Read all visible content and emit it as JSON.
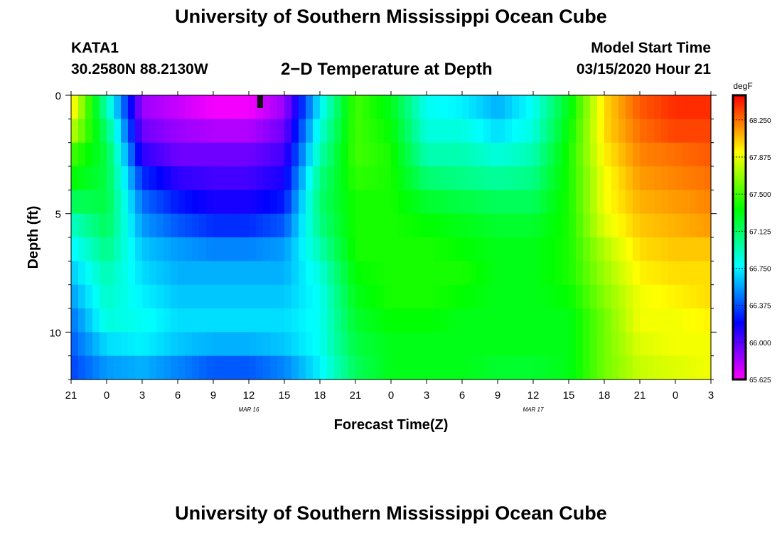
{
  "header": {
    "title": "University of Southern Mississippi Ocean Cube",
    "station_id": "KATA1",
    "coordinates": "30.2580N 88.2130W",
    "plot_title": "2−D Temperature at Depth",
    "model_start_label": "Model Start Time",
    "model_start_time": "03/15/2020 Hour 21"
  },
  "footer": {
    "title": "University of Southern Mississippi Ocean Cube"
  },
  "chart_data": {
    "type": "heatmap",
    "title": "2−D Temperature at Depth",
    "xlabel": "Forecast Time(Z)",
    "ylabel": "Depth (ft)",
    "x_tick_labels": [
      "21",
      "0",
      "3",
      "6",
      "9",
      "12",
      "15",
      "18",
      "21",
      "0",
      "3",
      "6",
      "9",
      "12",
      "15",
      "18",
      "21",
      "0",
      "3"
    ],
    "x_date_labels": [
      {
        "text": "MAR 16",
        "at_tick": 5
      },
      {
        "text": "MAR 17",
        "at_tick": 13
      }
    ],
    "x_forecast_hours_range": [
      0,
      54
    ],
    "y_tick_labels": [
      "0",
      "5",
      "10"
    ],
    "y_tick_values": [
      0,
      5,
      10
    ],
    "ylim_ft": [
      0,
      12
    ],
    "colorbar": {
      "unit": "degF",
      "min": 65.625,
      "max": 68.5,
      "tick_labels": [
        "68.250",
        "67.875",
        "67.500",
        "67.125",
        "66.750",
        "66.375",
        "66.000",
        "65.625"
      ],
      "tick_values": [
        68.25,
        67.875,
        67.5,
        67.125,
        66.75,
        66.375,
        66.0,
        65.625
      ]
    },
    "grid_hours": [
      0,
      3,
      6,
      9,
      12,
      15,
      18,
      21,
      24,
      27,
      30,
      33,
      36,
      39,
      42,
      45,
      48,
      51,
      54
    ],
    "grid_depths_ft": [
      0,
      1,
      2,
      3,
      4,
      5,
      6,
      7,
      8,
      9,
      10,
      11,
      12
    ],
    "temperature_degF": [
      [
        68.0,
        66.9,
        65.8,
        65.7,
        65.6,
        65.6,
        65.8,
        66.7,
        67.5,
        67.3,
        66.8,
        66.7,
        66.6,
        66.8,
        67.3,
        68.0,
        68.3,
        68.4,
        68.4
      ],
      [
        68.0,
        67.0,
        65.9,
        65.8,
        65.7,
        65.7,
        65.9,
        66.8,
        67.5,
        67.3,
        66.8,
        66.8,
        66.6,
        66.8,
        67.3,
        68.0,
        68.3,
        68.4,
        68.4
      ],
      [
        67.6,
        67.2,
        66.0,
        65.9,
        65.9,
        65.9,
        66.0,
        66.9,
        67.5,
        67.4,
        66.9,
        66.9,
        66.8,
        66.9,
        67.4,
        68.0,
        68.2,
        68.3,
        68.3
      ],
      [
        67.4,
        67.2,
        66.2,
        66.0,
        66.0,
        66.0,
        66.1,
        67.0,
        67.5,
        67.4,
        67.0,
        67.0,
        66.9,
        67.0,
        67.4,
        67.9,
        68.2,
        68.2,
        68.3
      ],
      [
        67.3,
        67.2,
        66.4,
        66.2,
        66.1,
        66.1,
        66.2,
        67.1,
        67.4,
        67.4,
        67.2,
        67.1,
        67.1,
        67.1,
        67.4,
        67.9,
        68.1,
        68.2,
        68.2
      ],
      [
        67.0,
        67.2,
        66.5,
        66.3,
        66.2,
        66.2,
        66.3,
        67.1,
        67.4,
        67.4,
        67.3,
        67.3,
        67.2,
        67.2,
        67.4,
        67.9,
        68.1,
        68.1,
        68.2
      ],
      [
        66.8,
        67.1,
        66.6,
        66.5,
        66.4,
        66.4,
        66.5,
        67.0,
        67.4,
        67.4,
        67.4,
        67.3,
        67.3,
        67.3,
        67.4,
        67.8,
        68.0,
        68.1,
        68.1
      ],
      [
        66.7,
        67.0,
        66.7,
        66.6,
        66.6,
        66.6,
        66.6,
        66.9,
        67.4,
        67.4,
        67.4,
        67.4,
        67.3,
        67.3,
        67.4,
        67.7,
        68.0,
        68.0,
        68.0
      ],
      [
        66.6,
        66.9,
        66.7,
        66.6,
        66.6,
        66.6,
        66.6,
        66.8,
        67.3,
        67.4,
        67.4,
        67.4,
        67.3,
        67.3,
        67.4,
        67.7,
        67.9,
        68.0,
        68.0
      ],
      [
        66.5,
        66.9,
        66.8,
        66.7,
        66.7,
        66.7,
        66.7,
        66.8,
        67.3,
        67.4,
        67.4,
        67.3,
        67.3,
        67.3,
        67.3,
        67.6,
        67.9,
        67.9,
        68.0
      ],
      [
        66.4,
        66.8,
        66.8,
        66.7,
        66.7,
        66.7,
        66.7,
        66.8,
        67.2,
        67.3,
        67.3,
        67.3,
        67.3,
        67.3,
        67.3,
        67.6,
        67.9,
        67.9,
        67.9
      ],
      [
        66.4,
        66.6,
        66.7,
        66.6,
        66.5,
        66.5,
        66.6,
        66.8,
        67.2,
        67.3,
        67.3,
        67.3,
        67.3,
        67.3,
        67.3,
        67.6,
        67.8,
        67.9,
        67.9
      ],
      [
        66.3,
        66.5,
        66.5,
        66.4,
        66.3,
        66.3,
        66.4,
        66.7,
        67.1,
        67.3,
        67.3,
        67.3,
        67.2,
        67.2,
        67.3,
        67.6,
        67.8,
        67.8,
        67.9
      ]
    ]
  }
}
